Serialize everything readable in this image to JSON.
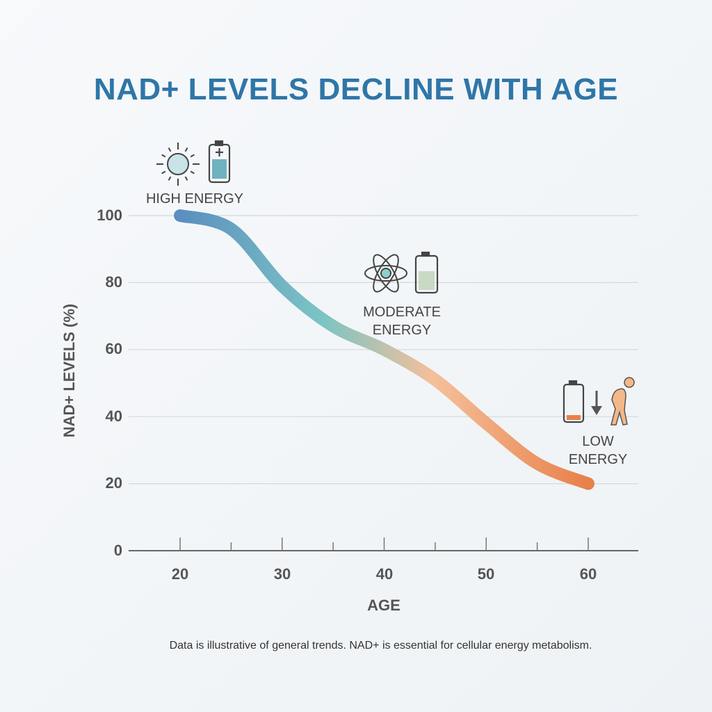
{
  "chart_data": {
    "type": "line",
    "title": "NAD+ LEVELS DECLINE WITH AGE",
    "xlabel": "AGE",
    "ylabel": "NAD+ LEVELS (%)",
    "xlim": [
      20,
      60
    ],
    "ylim": [
      0,
      100
    ],
    "x_ticks": [
      "20",
      "30",
      "40",
      "50",
      "60"
    ],
    "y_ticks": [
      "0",
      "20",
      "40",
      "60",
      "80",
      "100"
    ],
    "grid": true,
    "x": [
      20,
      25,
      30,
      35,
      40,
      45,
      50,
      55,
      60
    ],
    "values": [
      100,
      96,
      79,
      67,
      60,
      51,
      38,
      26,
      20
    ],
    "gradient_colors": [
      "#5b8fc0",
      "#7cc4c4",
      "#f5c09a",
      "#e8804a"
    ],
    "annotations": [
      {
        "label_line1": "HIGH ENERGY",
        "label_line2": "",
        "icons": [
          "sun-icon",
          "full-battery-icon"
        ]
      },
      {
        "label_line1": "MODERATE",
        "label_line2": "ENERGY",
        "icons": [
          "atom-icon",
          "half-battery-icon"
        ]
      },
      {
        "label_line1": "LOW",
        "label_line2": "ENERGY",
        "icons": [
          "low-battery-icon",
          "down-arrow-icon",
          "tired-person-icon"
        ]
      }
    ],
    "footnote": "Data is illustrative of general trends. NAD+ is essential for cellular energy metabolism."
  }
}
